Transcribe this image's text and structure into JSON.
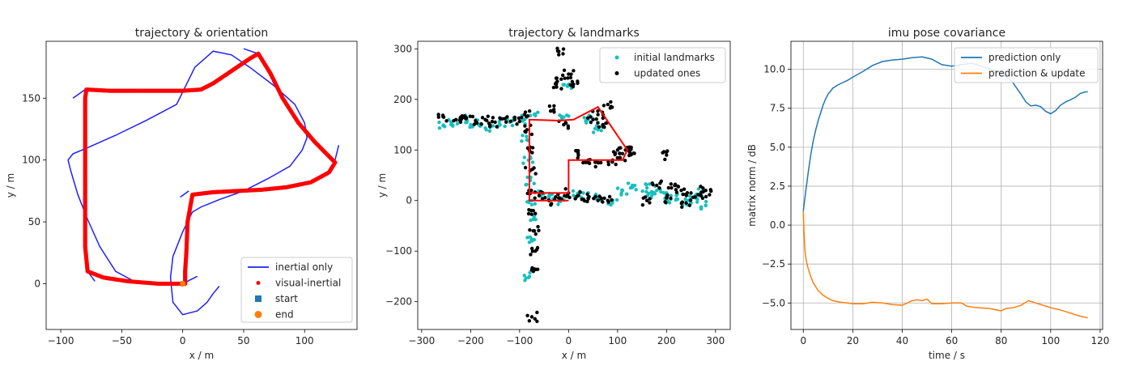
{
  "chart_data": [
    {
      "type": "line",
      "title": "trajectory & orientation",
      "xlabel": "x / m",
      "ylabel": "y / m",
      "xlim": [
        -112,
        143
      ],
      "ylim": [
        -37,
        196
      ],
      "xticks": [
        -100,
        -50,
        0,
        50,
        100
      ],
      "yticks": [
        0,
        50,
        100,
        150
      ],
      "legend_position": "lower-right",
      "series": [
        {
          "name": "inertial only",
          "kind": "line",
          "color": "#1f1fff",
          "x": [
            0,
            -2,
            -10,
            -25,
            -40,
            -55,
            -68,
            -78,
            -86,
            -92,
            -94,
            -90,
            -78,
            -55,
            -30,
            -5,
            10,
            25,
            40,
            55,
            75,
            92,
            100,
            102,
            98,
            88,
            70,
            50,
            30,
            15,
            8,
            0,
            -8,
            -10,
            -8,
            0,
            12,
            20,
            25,
            30
          ],
          "y": [
            0,
            0,
            0,
            0,
            2,
            10,
            30,
            52,
            72,
            92,
            100,
            105,
            110,
            120,
            132,
            145,
            175,
            188,
            185,
            175,
            160,
            145,
            130,
            118,
            108,
            95,
            85,
            75,
            68,
            62,
            58,
            42,
            22,
            5,
            -15,
            -25,
            -22,
            -15,
            -8,
            -2
          ]
        },
        {
          "name": "visual-inertial",
          "kind": "scatter",
          "color": "#ff0000",
          "x": [
            0,
            -20,
            -45,
            -65,
            -78,
            -80,
            -80,
            -80,
            -80,
            -80,
            -79,
            -60,
            -40,
            -20,
            0,
            15,
            25,
            40,
            55,
            62,
            72,
            82,
            95,
            108,
            118,
            125,
            120,
            105,
            85,
            65,
            45,
            25,
            8,
            4,
            3,
            2,
            2,
            0
          ],
          "y": [
            0,
            0,
            2,
            5,
            10,
            30,
            60,
            90,
            120,
            150,
            157,
            156,
            156,
            156,
            156,
            157,
            162,
            172,
            182,
            186,
            170,
            150,
            130,
            115,
            105,
            98,
            90,
            82,
            78,
            76,
            75,
            74,
            72,
            50,
            25,
            10,
            0,
            0
          ]
        },
        {
          "name": "start",
          "kind": "marker",
          "marker": "square",
          "color": "#1f77b4"
        },
        {
          "name": "end",
          "kind": "marker",
          "marker": "circle",
          "color": "#ff7f0e"
        }
      ]
    },
    {
      "type": "scatter",
      "title": "trajectory & landmarks",
      "xlabel": "x / m",
      "ylabel": "y / m",
      "xlim": [
        -308,
        330
      ],
      "ylim": [
        -255,
        315
      ],
      "xticks": [
        -300,
        -200,
        -100,
        0,
        100,
        200,
        300
      ],
      "yticks": [
        -200,
        -100,
        0,
        100,
        200,
        300
      ],
      "legend_position": "top-right",
      "trajectory": {
        "color": "#ff0000",
        "x": [
          0,
          -80,
          -80,
          -20,
          10,
          60,
          120,
          110,
          50,
          0,
          0,
          -80,
          -80
        ],
        "y": [
          0,
          0,
          160,
          158,
          160,
          185,
          100,
          80,
          80,
          80,
          15,
          15,
          0
        ]
      },
      "series": [
        {
          "name": "initial landmarks",
          "color": "#17bfbf",
          "x": [
            -255,
            -240,
            -220,
            -200,
            -180,
            -160,
            -140,
            -120,
            -90,
            -85,
            -82,
            -78,
            -75,
            -70,
            -75,
            -80,
            -60,
            -40,
            -20,
            10,
            30,
            60,
            90,
            110,
            130,
            60,
            40,
            -10,
            -70,
            160,
            180,
            200,
            220,
            240,
            260,
            270,
            280,
            250,
            200,
            170,
            0
          ],
          "y": [
            148,
            155,
            160,
            150,
            152,
            145,
            150,
            155,
            160,
            120,
            80,
            40,
            0,
            -30,
            -80,
            -150,
            10,
            5,
            0,
            10,
            15,
            5,
            0,
            20,
            30,
            140,
            160,
            165,
            170,
            25,
            20,
            15,
            10,
            0,
            5,
            15,
            -10,
            -5,
            0,
            10,
            230
          ]
        },
        {
          "name": "updated ones",
          "color": "#000000",
          "x": [
            -255,
            -230,
            -210,
            -190,
            -170,
            -150,
            -130,
            -110,
            -90,
            -85,
            -80,
            -78,
            -76,
            -72,
            -70,
            -68,
            -72,
            -75,
            -60,
            -40,
            -20,
            0,
            20,
            40,
            60,
            80,
            100,
            120,
            125,
            105,
            90,
            60,
            40,
            20,
            -10,
            -30,
            -25,
            -15,
            0,
            10,
            200,
            210,
            230,
            250,
            270,
            280,
            160,
            180,
            200,
            240,
            50,
            60,
            70,
            80,
            -20
          ],
          "y": [
            165,
            160,
            162,
            158,
            160,
            155,
            162,
            160,
            170,
            140,
            100,
            60,
            20,
            -20,
            -60,
            -100,
            -140,
            -230,
            10,
            0,
            5,
            15,
            10,
            5,
            0,
            0,
            100,
            105,
            95,
            85,
            80,
            75,
            80,
            90,
            150,
            180,
            230,
            240,
            250,
            230,
            90,
            25,
            20,
            15,
            10,
            20,
            0,
            30,
            5,
            -5,
            160,
            170,
            150,
            190,
            295
          ]
        }
      ]
    },
    {
      "type": "line",
      "title": "imu pose covariance",
      "xlabel": "time / s",
      "ylabel": "matrix norm / dB",
      "xlim": [
        -5,
        121
      ],
      "ylim": [
        -6.7,
        11.8
      ],
      "xticks": [
        0,
        20,
        40,
        60,
        80,
        100,
        120
      ],
      "yticks": [
        -5.0,
        -2.5,
        0.0,
        2.5,
        5.0,
        7.5,
        10.0
      ],
      "grid": true,
      "legend_position": "top-right",
      "series": [
        {
          "name": "prediction only",
          "color": "#1f77b4",
          "x": [
            0,
            1,
            2,
            3,
            4,
            5,
            6,
            7,
            8,
            9,
            10,
            12,
            14,
            16,
            18,
            20,
            24,
            28,
            32,
            36,
            40,
            44,
            48,
            52,
            56,
            60,
            64,
            68,
            72,
            76,
            80,
            84,
            88,
            90,
            92,
            94,
            96,
            98,
            100,
            102,
            104,
            106,
            108,
            110,
            112,
            114,
            115
          ],
          "y": [
            0.9,
            2.2,
            3.4,
            4.5,
            5.4,
            6.1,
            6.7,
            7.2,
            7.7,
            8.1,
            8.4,
            8.8,
            9.0,
            9.15,
            9.3,
            9.5,
            9.85,
            10.25,
            10.5,
            10.6,
            10.65,
            10.75,
            10.8,
            10.65,
            10.3,
            10.2,
            10.3,
            10.4,
            10.2,
            10.0,
            9.7,
            9.3,
            8.4,
            7.9,
            7.65,
            7.7,
            7.6,
            7.3,
            7.15,
            7.35,
            7.7,
            7.9,
            8.05,
            8.2,
            8.45,
            8.55,
            8.55
          ]
        },
        {
          "name": "prediction & update",
          "color": "#ff7f0e",
          "x": [
            0,
            0.3,
            0.6,
            1,
            1.5,
            2,
            3,
            4,
            5,
            6,
            8,
            10,
            12,
            15,
            18,
            20,
            24,
            28,
            32,
            36,
            40,
            44,
            46,
            48,
            50,
            52,
            56,
            60,
            64,
            66,
            70,
            75,
            80,
            82,
            85,
            88,
            91,
            93,
            95,
            98,
            100,
            104,
            108,
            112,
            115
          ],
          "y": [
            0.9,
            -0.5,
            -1.5,
            -2.1,
            -2.5,
            -2.8,
            -3.3,
            -3.7,
            -3.95,
            -4.2,
            -4.5,
            -4.7,
            -4.85,
            -4.95,
            -5.0,
            -5.05,
            -5.05,
            -4.95,
            -5.0,
            -5.1,
            -5.15,
            -4.85,
            -4.8,
            -4.85,
            -4.75,
            -5.05,
            -5.05,
            -5.0,
            -5.0,
            -5.2,
            -5.3,
            -5.35,
            -5.5,
            -5.35,
            -5.3,
            -5.15,
            -4.85,
            -4.95,
            -5.05,
            -5.2,
            -5.3,
            -5.45,
            -5.65,
            -5.85,
            -5.95
          ]
        }
      ]
    }
  ]
}
